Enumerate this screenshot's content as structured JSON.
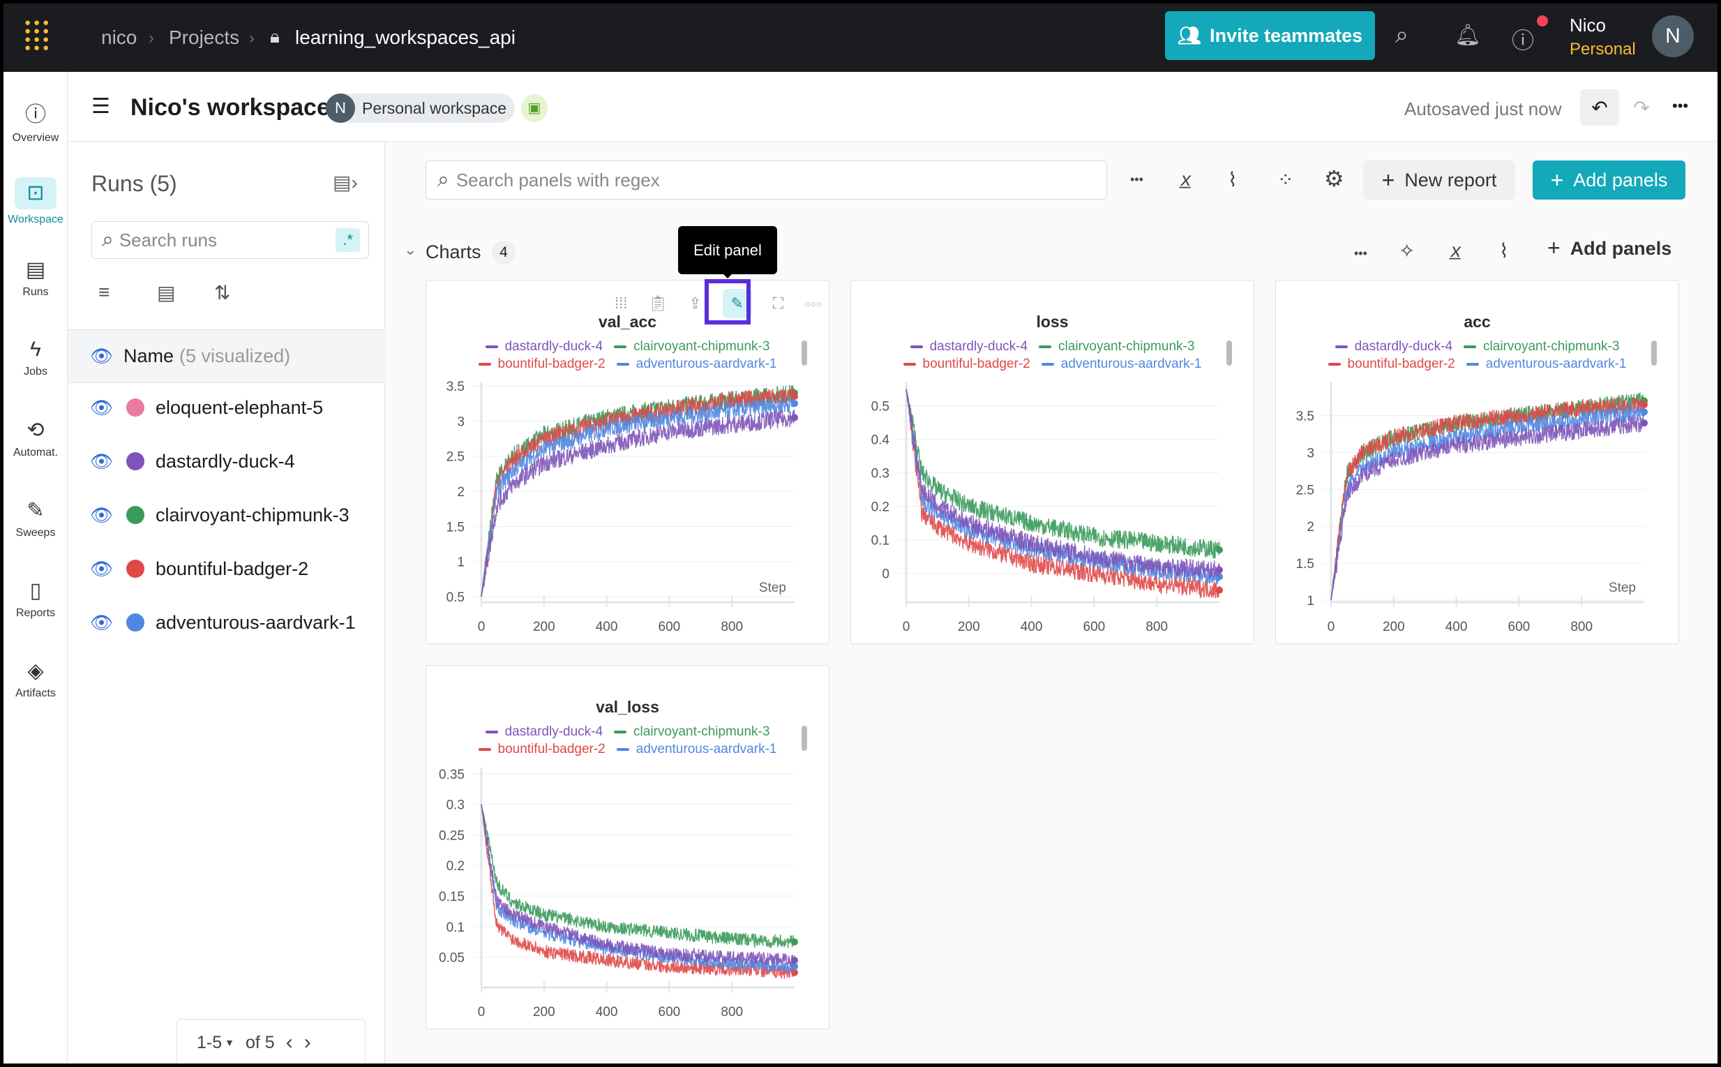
{
  "topbar": {
    "crumbs": [
      "nico",
      "Projects",
      "learning_workspaces_api"
    ],
    "invite": "Invite teammates",
    "user_name": "Nico",
    "user_sub": "Personal",
    "avatar": "N"
  },
  "nav": [
    {
      "label": "Overview",
      "icon": "ⓘ"
    },
    {
      "label": "Workspace",
      "icon": "⊡"
    },
    {
      "label": "Runs",
      "icon": "▤"
    },
    {
      "label": "Jobs",
      "icon": "ϟ"
    },
    {
      "label": "Automat.",
      "icon": "⟲"
    },
    {
      "label": "Sweeps",
      "icon": "✎"
    },
    {
      "label": "Reports",
      "icon": "▯"
    },
    {
      "label": "Artifacts",
      "icon": "◈"
    }
  ],
  "header": {
    "title": "Nico's workspace",
    "avatar": "N",
    "badge": "Personal workspace",
    "autosave": "Autosaved just now"
  },
  "runs": {
    "title": "Runs (5)",
    "search_placeholder": "Search runs",
    "regex": ".*",
    "name_col": "Name",
    "visualized": "(5 visualized)",
    "items": [
      {
        "name": "eloquent-elephant-5",
        "color": "#e87ba0"
      },
      {
        "name": "dastardly-duck-4",
        "color": "#7e54b8"
      },
      {
        "name": "clairvoyant-chipmunk-3",
        "color": "#3a9a5b"
      },
      {
        "name": "bountiful-badger-2",
        "color": "#e04848"
      },
      {
        "name": "adventurous-aardvark-1",
        "color": "#5087e0"
      }
    ],
    "pagination": {
      "range": "1-5",
      "of": "of 5"
    }
  },
  "toolbar": {
    "search_placeholder": "Search panels with regex",
    "new_report": "New report",
    "add_panels": "Add panels"
  },
  "section": {
    "title": "Charts",
    "count": "4",
    "add_panels": "Add panels"
  },
  "tooltip": "Edit panel",
  "chart_data": [
    {
      "type": "line",
      "title": "val_acc",
      "xlabel": "Step",
      "xlim": [
        0,
        1000
      ],
      "xticks": [
        0,
        200,
        400,
        600,
        800
      ],
      "ylim": [
        0.45,
        3.55
      ],
      "yticks": [
        0.5,
        1,
        1.5,
        2,
        2.5,
        3,
        3.5
      ],
      "x": [
        0,
        50,
        100,
        200,
        400,
        600,
        800,
        1000
      ],
      "series": [
        {
          "name": "dastardly-duck-4",
          "color": "#7e54b8",
          "values": [
            0.5,
            1.8,
            2.1,
            2.4,
            2.65,
            2.85,
            2.95,
            3.05
          ]
        },
        {
          "name": "clairvoyant-chipmunk-3",
          "color": "#3a9a5b",
          "values": [
            0.5,
            2.2,
            2.5,
            2.8,
            3.05,
            3.2,
            3.3,
            3.4
          ]
        },
        {
          "name": "bountiful-badger-2",
          "color": "#e04848",
          "values": [
            0.5,
            2.15,
            2.45,
            2.75,
            3.0,
            3.15,
            3.3,
            3.35
          ]
        },
        {
          "name": "adventurous-aardvark-1",
          "color": "#5087e0",
          "values": [
            0.5,
            2.0,
            2.3,
            2.6,
            2.9,
            3.05,
            3.15,
            3.25
          ]
        }
      ]
    },
    {
      "type": "line",
      "title": "loss",
      "xlabel": "",
      "xlim": [
        0,
        1000
      ],
      "xticks": [
        0,
        200,
        400,
        600,
        800
      ],
      "ylim": [
        -0.08,
        0.57
      ],
      "yticks": [
        0,
        0.1,
        0.2,
        0.3,
        0.4,
        0.5
      ],
      "x": [
        0,
        50,
        100,
        200,
        400,
        600,
        800,
        1000
      ],
      "series": [
        {
          "name": "dastardly-duck-4",
          "color": "#7e54b8",
          "values": [
            0.55,
            0.25,
            0.2,
            0.15,
            0.09,
            0.05,
            0.02,
            0.01
          ]
        },
        {
          "name": "clairvoyant-chipmunk-3",
          "color": "#3a9a5b",
          "values": [
            0.55,
            0.3,
            0.25,
            0.2,
            0.15,
            0.11,
            0.09,
            0.07
          ]
        },
        {
          "name": "bountiful-badger-2",
          "color": "#e04848",
          "values": [
            0.55,
            0.18,
            0.14,
            0.09,
            0.03,
            0,
            -0.03,
            -0.05
          ]
        },
        {
          "name": "adventurous-aardvark-1",
          "color": "#5087e0",
          "values": [
            0.55,
            0.22,
            0.18,
            0.13,
            0.07,
            0.04,
            0.01,
            -0.01
          ]
        }
      ]
    },
    {
      "type": "line",
      "title": "acc",
      "xlabel": "Step",
      "xlim": [
        0,
        1000
      ],
      "xticks": [
        0,
        200,
        400,
        600,
        800
      ],
      "ylim": [
        1,
        3.95
      ],
      "yticks": [
        1,
        1.5,
        2,
        2.5,
        3,
        3.5
      ],
      "x": [
        0,
        50,
        100,
        200,
        400,
        600,
        800,
        1000
      ],
      "series": [
        {
          "name": "dastardly-duck-4",
          "color": "#7e54b8",
          "values": [
            1,
            2.4,
            2.7,
            2.9,
            3.1,
            3.2,
            3.3,
            3.4
          ]
        },
        {
          "name": "clairvoyant-chipmunk-3",
          "color": "#3a9a5b",
          "values": [
            1,
            2.7,
            3.0,
            3.2,
            3.4,
            3.5,
            3.6,
            3.7
          ]
        },
        {
          "name": "bountiful-badger-2",
          "color": "#e04848",
          "values": [
            1,
            2.7,
            3.0,
            3.2,
            3.4,
            3.5,
            3.6,
            3.65
          ]
        },
        {
          "name": "adventurous-aardvark-1",
          "color": "#5087e0",
          "values": [
            1,
            2.5,
            2.8,
            3.0,
            3.2,
            3.35,
            3.45,
            3.55
          ]
        }
      ]
    },
    {
      "type": "line",
      "title": "val_loss",
      "xlabel": "",
      "xlim": [
        0,
        1000
      ],
      "xticks": [
        0,
        200,
        400,
        600,
        800
      ],
      "ylim": [
        0.004,
        0.36
      ],
      "yticks": [
        0.05,
        0.1,
        0.15,
        0.2,
        0.25,
        0.3,
        0.35
      ],
      "x": [
        0,
        50,
        100,
        200,
        400,
        600,
        800,
        1000
      ],
      "series": [
        {
          "name": "dastardly-duck-4",
          "color": "#7e54b8",
          "values": [
            0.3,
            0.14,
            0.12,
            0.1,
            0.07,
            0.055,
            0.05,
            0.045
          ]
        },
        {
          "name": "clairvoyant-chipmunk-3",
          "color": "#3a9a5b",
          "values": [
            0.3,
            0.17,
            0.14,
            0.12,
            0.1,
            0.09,
            0.08,
            0.075
          ]
        },
        {
          "name": "bountiful-badger-2",
          "color": "#e04848",
          "values": [
            0.3,
            0.1,
            0.08,
            0.06,
            0.045,
            0.035,
            0.03,
            0.025
          ]
        },
        {
          "name": "adventurous-aardvark-1",
          "color": "#5087e0",
          "values": [
            0.3,
            0.13,
            0.11,
            0.09,
            0.065,
            0.05,
            0.04,
            0.035
          ]
        }
      ]
    }
  ]
}
